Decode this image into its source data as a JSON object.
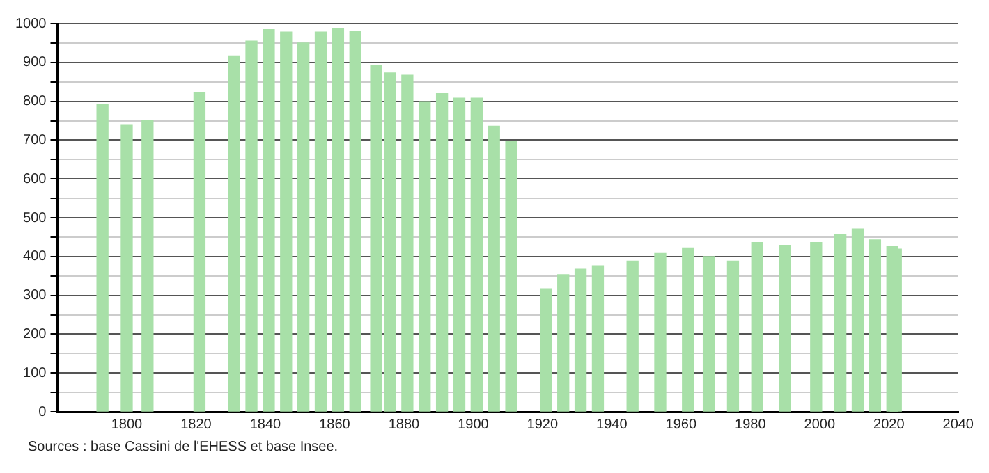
{
  "chart_data": {
    "type": "bar",
    "x": [
      1793,
      1800,
      1806,
      1821,
      1831,
      1836,
      1841,
      1846,
      1851,
      1856,
      1861,
      1866,
      1872,
      1876,
      1881,
      1886,
      1891,
      1896,
      1901,
      1906,
      1911,
      1921,
      1926,
      1931,
      1936,
      1946,
      1954,
      1962,
      1968,
      1975,
      1982,
      1990,
      1999,
      2006,
      2011,
      2016,
      2021,
      2022
    ],
    "values": [
      792,
      740,
      750,
      823,
      917,
      955,
      986,
      978,
      950,
      978,
      988,
      979,
      893,
      873,
      867,
      799,
      821,
      808,
      808,
      736,
      697,
      317,
      353,
      367,
      376,
      388,
      408,
      422,
      400,
      388,
      436,
      429,
      436,
      457,
      471,
      443,
      426,
      419
    ],
    "color": "#a8e0a8",
    "xlim": [
      1780,
      2040
    ],
    "xticks": [
      1800,
      1820,
      1840,
      1860,
      1880,
      1900,
      1920,
      1940,
      1960,
      1980,
      2000,
      2020,
      2040
    ],
    "ylim": [
      0,
      1000
    ],
    "yticks": [
      0,
      {
        "value": 50,
        "label": null
      },
      100,
      {
        "value": 150,
        "label": null
      },
      200,
      {
        "value": 250,
        "label": null
      },
      300,
      {
        "value": 350,
        "label": null
      },
      400,
      {
        "value": 450,
        "label": null
      },
      500,
      {
        "value": 550,
        "label": null
      },
      600,
      {
        "value": 650,
        "label": null
      },
      700,
      {
        "value": 750,
        "label": null
      },
      800,
      {
        "value": 850,
        "label": null
      },
      900,
      {
        "value": 950,
        "label": null
      },
      1000
    ],
    "grid": "y",
    "legend": false,
    "annotations": [
      "Sources : base Cassini de l'EHESS et base Insee."
    ]
  }
}
